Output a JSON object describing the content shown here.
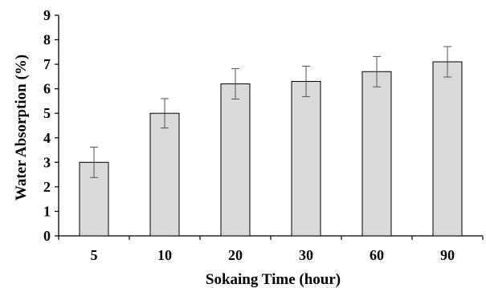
{
  "chart_data": {
    "type": "bar",
    "categories": [
      "5",
      "10",
      "20",
      "30",
      "60",
      "90"
    ],
    "values": [
      3.0,
      5.0,
      6.2,
      6.3,
      6.7,
      7.1
    ],
    "errors": [
      0.62,
      0.6,
      0.62,
      0.62,
      0.62,
      0.62
    ],
    "xlabel": "Sokaing Time (hour)",
    "ylabel": "Water Absorption (%)",
    "ylim": [
      0,
      9
    ],
    "yticks": [
      "0",
      "1",
      "2",
      "3",
      "4",
      "5",
      "6",
      "7",
      "8",
      "9"
    ],
    "grid": false,
    "bar_color": "#d9d9d9",
    "bar_edge_color": "#000000"
  }
}
